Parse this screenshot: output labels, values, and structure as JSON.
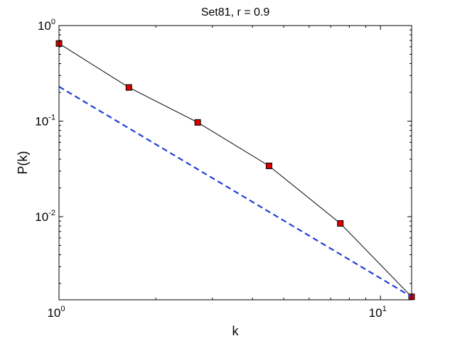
{
  "chart_data": {
    "type": "line",
    "title": "Set81, r = 0.9",
    "xlabel": "k",
    "ylabel": "P(k)",
    "xscale": "log",
    "yscale": "log",
    "xlim": [
      1,
      12.5
    ],
    "ylim": [
      0.00135,
      1
    ],
    "grid": false,
    "legend": "none",
    "x_ticks": [
      {
        "value": 1,
        "base": "10",
        "exp": "0"
      },
      {
        "value": 10,
        "base": "10",
        "exp": "1"
      }
    ],
    "y_ticks": [
      {
        "value": 1,
        "base": "10",
        "exp": "0"
      },
      {
        "value": 0.1,
        "base": "10",
        "exp": "-1"
      },
      {
        "value": 0.01,
        "base": "10",
        "exp": "-2"
      }
    ],
    "series": [
      {
        "style": "solid",
        "color": "#000000",
        "marker": "square",
        "marker_fill": "#dd0000",
        "x": [
          1,
          1.65,
          2.7,
          4.5,
          7.5,
          12.5
        ],
        "y": [
          0.65,
          0.225,
          0.097,
          0.034,
          0.0085,
          0.00145
        ]
      },
      {
        "style": "dashed",
        "color": "#1f3fd6",
        "marker": "none",
        "x": [
          1,
          12.5
        ],
        "y": [
          0.23,
          0.00145
        ]
      }
    ]
  }
}
